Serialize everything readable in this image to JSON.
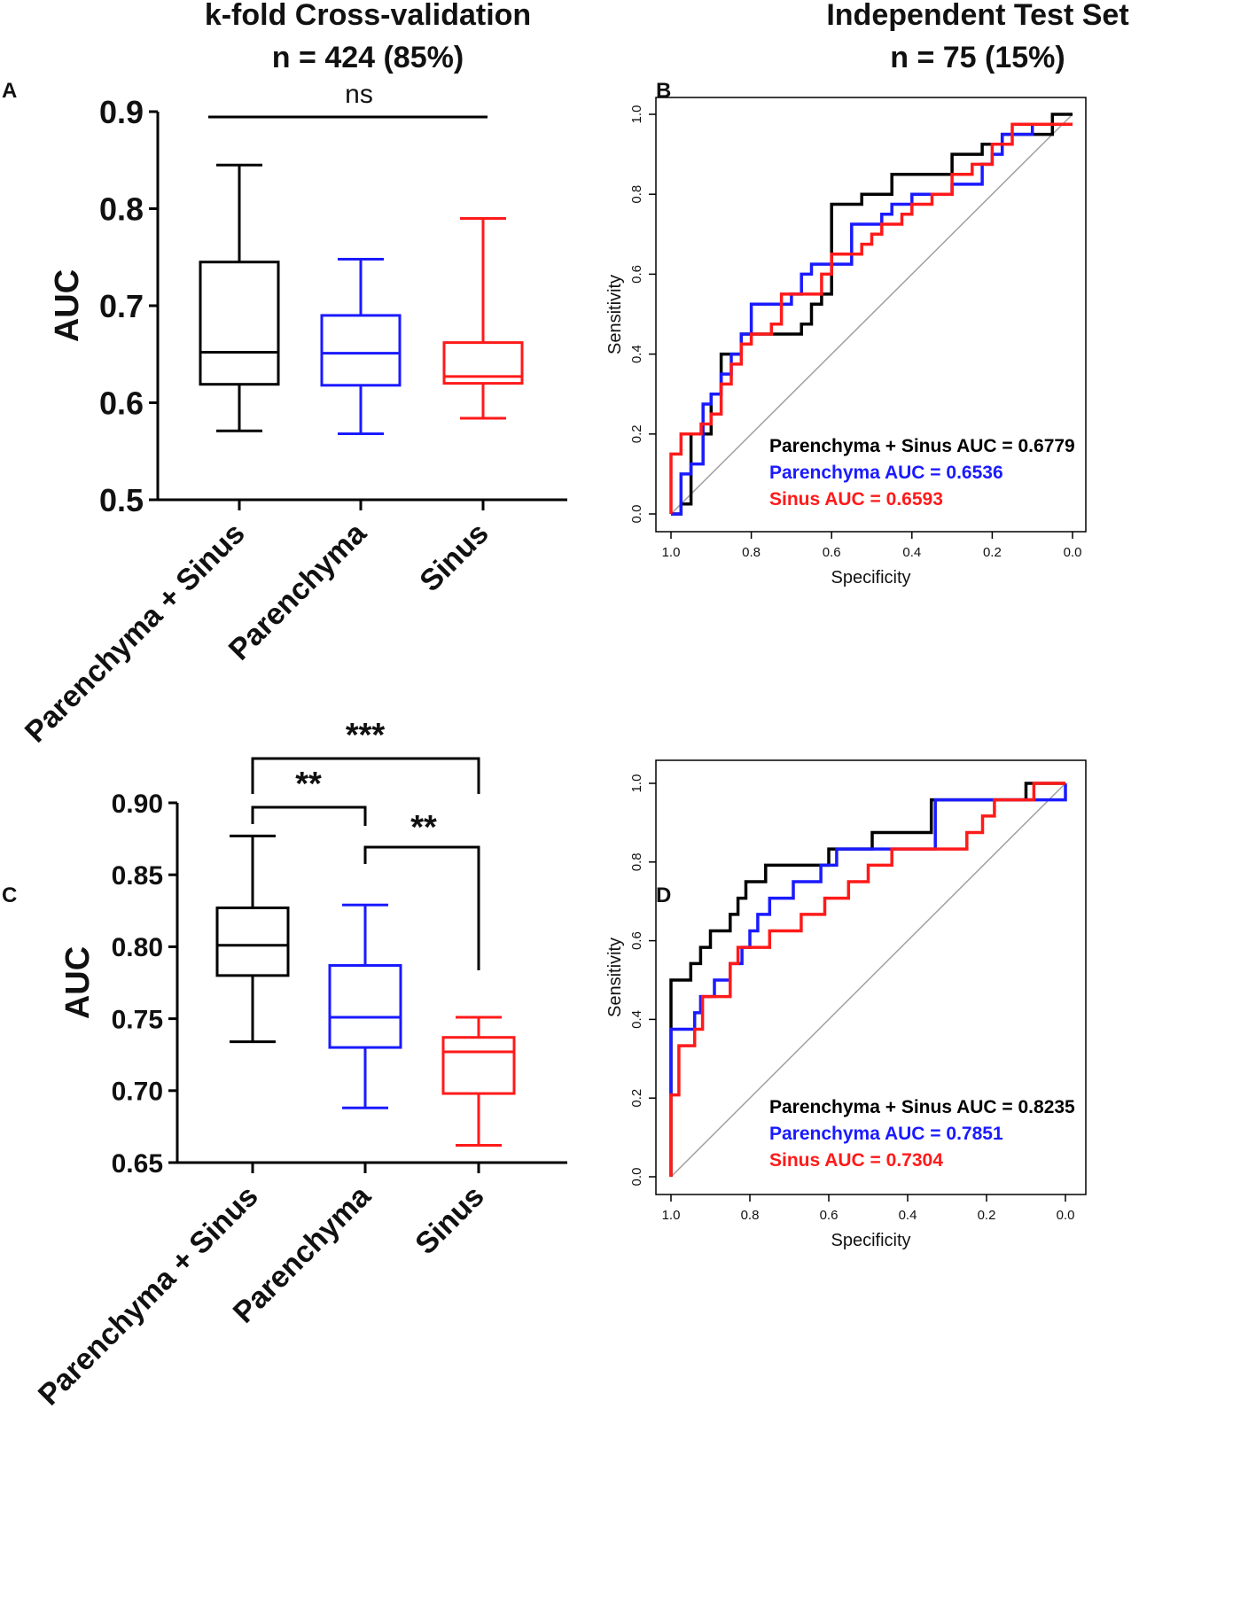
{
  "headers": {
    "left_line1": "k-fold Cross-validation",
    "left_line2": "n = 424 (85%)",
    "right_line1": "Independent Test Set",
    "right_line2": "n = 75 (15%)"
  },
  "panel_letters": {
    "a": "A",
    "b": "B",
    "c": "C",
    "d": "D"
  },
  "colors": {
    "combined": "#000000",
    "parenchyma": "#1a1aff",
    "sinus": "#ff1a1a",
    "diagonal": "#a0a0a0"
  },
  "chart_data": [
    {
      "panel": "A",
      "type": "box",
      "ylabel": "AUC",
      "ylim": [
        0.5,
        0.9
      ],
      "yticks": [
        0.5,
        0.6,
        0.7,
        0.8,
        0.9
      ],
      "yticklabels": [
        "0.5",
        "0.6",
        "0.7",
        "0.8",
        "0.9"
      ],
      "categories": [
        "Parenchyma + Sinus",
        "Parenchyma",
        "Sinus"
      ],
      "boxes": [
        {
          "name": "Parenchyma + Sinus",
          "color": "combined",
          "min": 0.571,
          "q1": 0.619,
          "median": 0.652,
          "q3": 0.745,
          "max": 0.845
        },
        {
          "name": "Parenchyma",
          "color": "parenchyma",
          "min": 0.568,
          "q1": 0.618,
          "median": 0.651,
          "q3": 0.69,
          "max": 0.748
        },
        {
          "name": "Sinus",
          "color": "sinus",
          "min": 0.584,
          "q1": 0.62,
          "median": 0.627,
          "q3": 0.662,
          "max": 0.79
        }
      ],
      "annotations": [
        {
          "type": "line",
          "from": 0,
          "to": 2,
          "label": "ns"
        }
      ]
    },
    {
      "panel": "B",
      "type": "line",
      "xlabel": "Specificity",
      "ylabel": "Sensitivity",
      "xlim": [
        1.0,
        0.0
      ],
      "ylim": [
        0.0,
        1.0
      ],
      "xticklabels": [
        "1.0",
        "0.8",
        "0.6",
        "0.4",
        "0.2",
        "0.0"
      ],
      "yticklabels": [
        "0.0",
        "0.2",
        "0.4",
        "0.6",
        "0.8",
        "1.0"
      ],
      "legend": [
        "Parenchyma + Sinus AUC = 0.6779",
        "Parenchyma AUC = 0.6536",
        "Sinus AUC = 0.6593"
      ],
      "series": [
        {
          "name": "Parenchyma + Sinus",
          "color": "combined",
          "x": [
            1.0,
            0.975,
            0.975,
            0.95,
            0.95,
            0.9,
            0.9,
            0.875,
            0.875,
            0.825,
            0.825,
            0.8,
            0.8,
            0.675,
            0.675,
            0.65,
            0.65,
            0.625,
            0.625,
            0.6,
            0.6,
            0.525,
            0.525,
            0.45,
            0.45,
            0.3,
            0.3,
            0.225,
            0.225,
            0.175,
            0.175,
            0.05,
            0.05,
            0.0
          ],
          "y": [
            0.0,
            0.0,
            0.025,
            0.025,
            0.2,
            0.2,
            0.3,
            0.3,
            0.4,
            0.4,
            0.45,
            0.45,
            0.45,
            0.45,
            0.475,
            0.475,
            0.525,
            0.525,
            0.55,
            0.55,
            0.775,
            0.775,
            0.8,
            0.8,
            0.85,
            0.85,
            0.9,
            0.9,
            0.925,
            0.925,
            0.95,
            0.95,
            1.0,
            1.0
          ]
        },
        {
          "name": "Parenchyma",
          "color": "parenchyma",
          "x": [
            1.0,
            0.975,
            0.975,
            0.95,
            0.95,
            0.92,
            0.92,
            0.9,
            0.9,
            0.875,
            0.875,
            0.85,
            0.85,
            0.825,
            0.825,
            0.8,
            0.8,
            0.775,
            0.775,
            0.7,
            0.7,
            0.675,
            0.675,
            0.65,
            0.65,
            0.625,
            0.625,
            0.55,
            0.55,
            0.475,
            0.475,
            0.45,
            0.45,
            0.4,
            0.4,
            0.3,
            0.3,
            0.225,
            0.225,
            0.2,
            0.2,
            0.175,
            0.175,
            0.1,
            0.1,
            0.05,
            0.05,
            0.0
          ],
          "y": [
            0.0,
            0.0,
            0.1,
            0.1,
            0.125,
            0.125,
            0.275,
            0.275,
            0.3,
            0.3,
            0.35,
            0.35,
            0.4,
            0.4,
            0.45,
            0.45,
            0.525,
            0.525,
            0.525,
            0.525,
            0.55,
            0.55,
            0.6,
            0.6,
            0.625,
            0.625,
            0.625,
            0.625,
            0.725,
            0.725,
            0.75,
            0.75,
            0.775,
            0.775,
            0.8,
            0.8,
            0.825,
            0.825,
            0.875,
            0.875,
            0.9,
            0.9,
            0.95,
            0.95,
            0.975,
            0.975,
            0.975,
            0.975
          ]
        },
        {
          "name": "Sinus",
          "color": "sinus",
          "x": [
            1.0,
            1.0,
            0.975,
            0.975,
            0.925,
            0.925,
            0.9,
            0.9,
            0.875,
            0.875,
            0.85,
            0.85,
            0.825,
            0.825,
            0.8,
            0.8,
            0.75,
            0.75,
            0.725,
            0.725,
            0.625,
            0.625,
            0.6,
            0.6,
            0.525,
            0.525,
            0.5,
            0.5,
            0.475,
            0.475,
            0.425,
            0.425,
            0.4,
            0.4,
            0.35,
            0.35,
            0.3,
            0.3,
            0.25,
            0.25,
            0.2,
            0.2,
            0.15,
            0.15,
            0.05,
            0.05,
            0.0
          ],
          "y": [
            0.0,
            0.15,
            0.15,
            0.2,
            0.2,
            0.225,
            0.225,
            0.25,
            0.25,
            0.325,
            0.325,
            0.375,
            0.375,
            0.425,
            0.425,
            0.45,
            0.45,
            0.475,
            0.475,
            0.55,
            0.55,
            0.6,
            0.6,
            0.65,
            0.65,
            0.675,
            0.675,
            0.7,
            0.7,
            0.725,
            0.725,
            0.75,
            0.75,
            0.775,
            0.775,
            0.8,
            0.8,
            0.85,
            0.85,
            0.875,
            0.875,
            0.925,
            0.925,
            0.975,
            0.975,
            0.975,
            0.975
          ]
        }
      ]
    },
    {
      "panel": "C",
      "type": "box",
      "ylabel": "AUC",
      "ylim": [
        0.65,
        0.9
      ],
      "yticks": [
        0.65,
        0.7,
        0.75,
        0.8,
        0.85,
        0.9
      ],
      "yticklabels": [
        "0.65",
        "0.70",
        "0.75",
        "0.80",
        "0.85",
        "0.90"
      ],
      "categories": [
        "Parenchyma + Sinus",
        "Parenchyma",
        "Sinus"
      ],
      "boxes": [
        {
          "name": "Parenchyma + Sinus",
          "color": "combined",
          "min": 0.734,
          "q1": 0.78,
          "median": 0.801,
          "q3": 0.827,
          "max": 0.877
        },
        {
          "name": "Parenchyma",
          "color": "parenchyma",
          "min": 0.688,
          "q1": 0.73,
          "median": 0.751,
          "q3": 0.787,
          "max": 0.829
        },
        {
          "name": "Sinus",
          "color": "sinus",
          "min": 0.662,
          "q1": 0.698,
          "median": 0.727,
          "q3": 0.737,
          "max": 0.751
        }
      ],
      "annotations": [
        {
          "type": "bracket",
          "from": 0,
          "to": 2,
          "label": "***"
        },
        {
          "type": "bracket",
          "from": 0,
          "to": 1,
          "label": "**"
        },
        {
          "type": "bracket",
          "from": 1,
          "to": 2,
          "label": "**"
        }
      ]
    },
    {
      "panel": "D",
      "type": "line",
      "xlabel": "Specificity",
      "ylabel": "Sensitivity",
      "xlim": [
        1.0,
        0.0
      ],
      "ylim": [
        0.0,
        1.0
      ],
      "xticklabels": [
        "1.0",
        "0.8",
        "0.6",
        "0.4",
        "0.2",
        "0.0"
      ],
      "yticklabels": [
        "0.0",
        "0.2",
        "0.4",
        "0.6",
        "0.8",
        "1.0"
      ],
      "legend": [
        "Parenchyma + Sinus AUC = 0.8235",
        "Parenchyma AUC = 0.7851",
        "Sinus AUC = 0.7304"
      ],
      "series": [
        {
          "name": "Parenchyma + Sinus",
          "color": "combined",
          "x": [
            1.0,
            1.0,
            0.95,
            0.95,
            0.925,
            0.925,
            0.9,
            0.9,
            0.85,
            0.85,
            0.83,
            0.83,
            0.81,
            0.81,
            0.79,
            0.79,
            0.76,
            0.76,
            0.75,
            0.75,
            0.6,
            0.6,
            0.49,
            0.49,
            0.34,
            0.34,
            0.1,
            0.1,
            0.0
          ],
          "y": [
            0.0,
            0.5,
            0.5,
            0.542,
            0.542,
            0.583,
            0.583,
            0.625,
            0.625,
            0.667,
            0.667,
            0.708,
            0.708,
            0.75,
            0.75,
            0.75,
            0.75,
            0.792,
            0.792,
            0.792,
            0.792,
            0.833,
            0.833,
            0.875,
            0.875,
            0.958,
            0.958,
            1.0,
            1.0
          ]
        },
        {
          "name": "Parenchyma",
          "color": "parenchyma",
          "x": [
            1.0,
            1.0,
            0.94,
            0.94,
            0.925,
            0.925,
            0.89,
            0.89,
            0.87,
            0.87,
            0.85,
            0.85,
            0.82,
            0.82,
            0.8,
            0.8,
            0.78,
            0.78,
            0.75,
            0.75,
            0.69,
            0.69,
            0.62,
            0.62,
            0.58,
            0.58,
            0.33,
            0.33,
            0.0,
            0.0
          ],
          "y": [
            0.208,
            0.375,
            0.375,
            0.417,
            0.417,
            0.458,
            0.458,
            0.5,
            0.5,
            0.5,
            0.5,
            0.542,
            0.542,
            0.583,
            0.583,
            0.625,
            0.625,
            0.667,
            0.667,
            0.708,
            0.708,
            0.75,
            0.75,
            0.792,
            0.792,
            0.833,
            0.833,
            0.958,
            0.958,
            1.0
          ]
        },
        {
          "name": "Sinus",
          "color": "sinus",
          "x": [
            1.0,
            1.0,
            0.98,
            0.98,
            0.94,
            0.94,
            0.92,
            0.92,
            0.85,
            0.85,
            0.83,
            0.83,
            0.75,
            0.75,
            0.67,
            0.67,
            0.61,
            0.61,
            0.55,
            0.55,
            0.5,
            0.5,
            0.44,
            0.44,
            0.38,
            0.38,
            0.25,
            0.25,
            0.21,
            0.21,
            0.18,
            0.18,
            0.08,
            0.08,
            0.0
          ],
          "y": [
            0.0,
            0.208,
            0.208,
            0.333,
            0.333,
            0.375,
            0.375,
            0.458,
            0.458,
            0.542,
            0.542,
            0.583,
            0.583,
            0.625,
            0.625,
            0.667,
            0.667,
            0.708,
            0.708,
            0.75,
            0.75,
            0.792,
            0.792,
            0.833,
            0.833,
            0.833,
            0.833,
            0.875,
            0.875,
            0.917,
            0.917,
            0.958,
            0.958,
            1.0,
            1.0
          ]
        }
      ]
    }
  ]
}
